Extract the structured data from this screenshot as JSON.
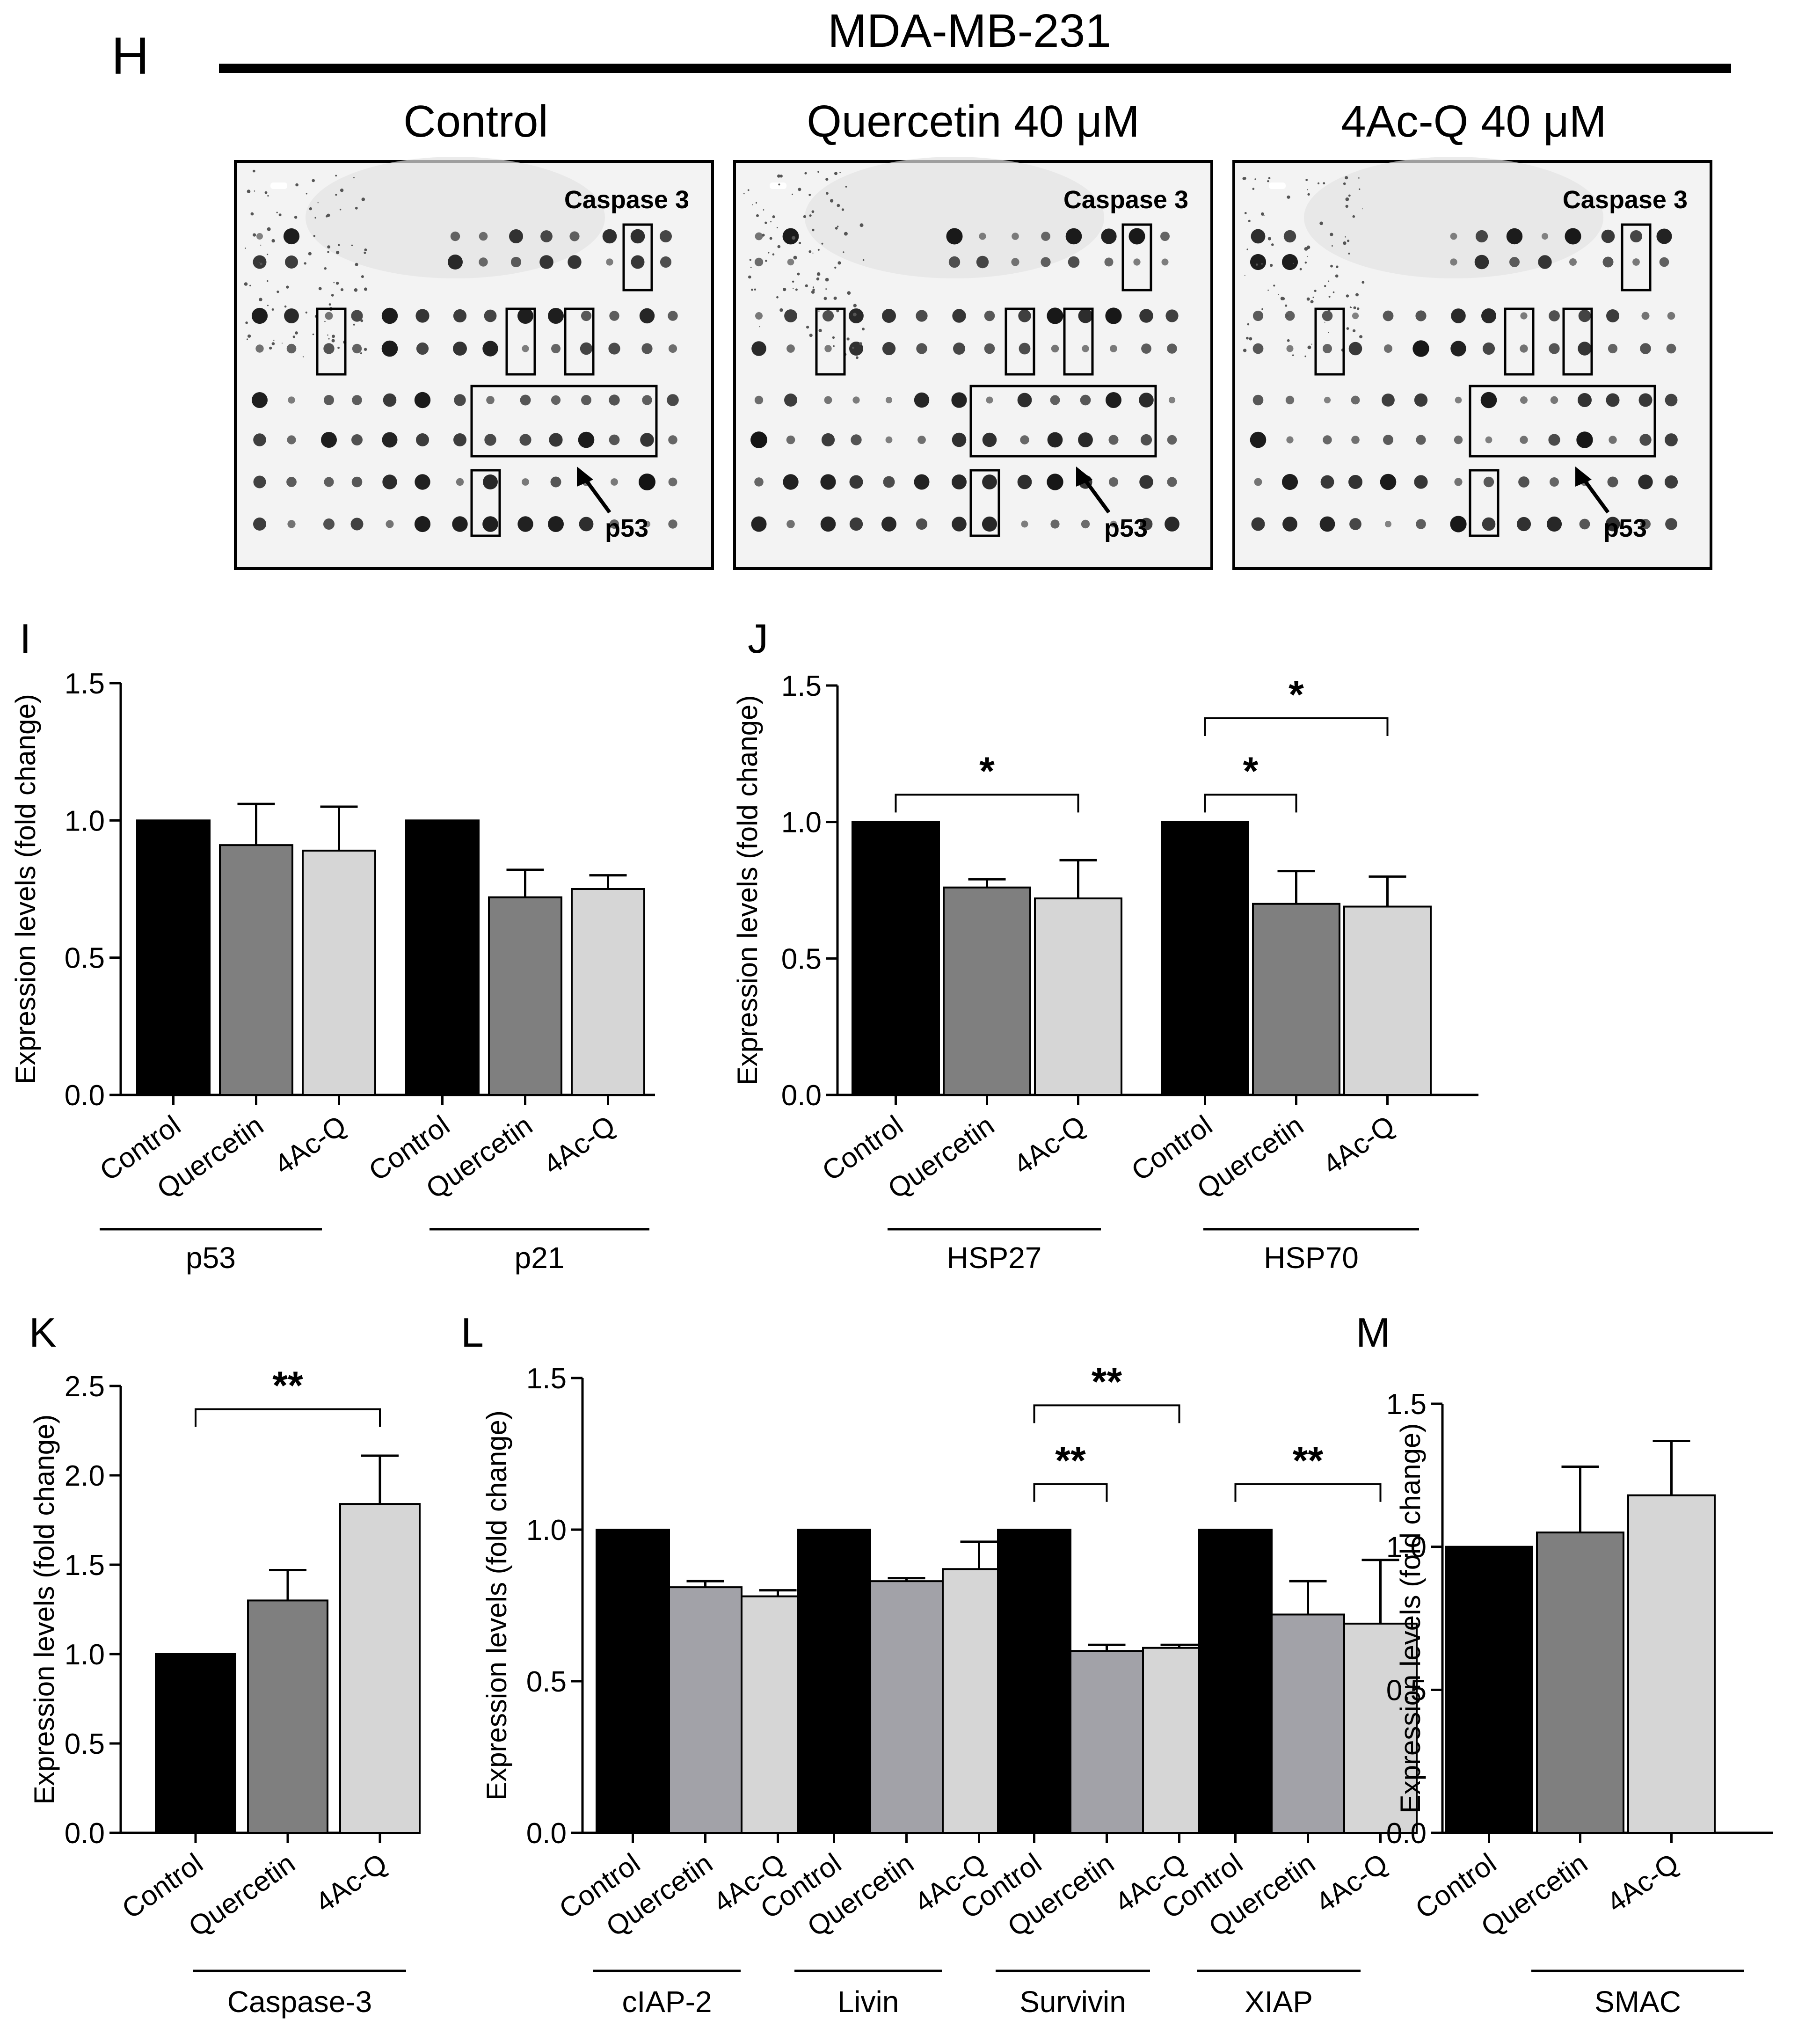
{
  "panel_h": {
    "label": "H",
    "cell_line": "MDA-MB-231",
    "blots": [
      {
        "title": "Control",
        "caspase_label": "Caspase 3",
        "p53_label": "p53"
      },
      {
        "title": "Quercetin 40 μM",
        "caspase_label": "Caspase 3",
        "p53_label": "p53"
      },
      {
        "title": "4Ac-Q 40 μM",
        "caspase_label": "Caspase 3",
        "p53_label": "p53"
      }
    ]
  },
  "colors": {
    "control": "#000000",
    "quercetin": "#7f7f7f",
    "acq": "#d6d6d6",
    "quercetin_light": "#a2a2a8"
  },
  "chart_data": [
    {
      "panel": "I",
      "type": "bar",
      "title": "",
      "ylabel": "Expression levels (fold change)",
      "xlabel": "",
      "ylim": [
        0,
        1.5
      ],
      "yticks": [
        "0.0",
        "0.5",
        "1.0",
        "1.5"
      ],
      "group_categories": [
        "Control",
        "Quercetin",
        "4Ac-Q"
      ],
      "groups": [
        {
          "name": "p53",
          "values": [
            1.0,
            0.91,
            0.89
          ],
          "errors": [
            0,
            0.15,
            0.16
          ]
        },
        {
          "name": "p21",
          "values": [
            1.0,
            0.72,
            0.75
          ],
          "errors": [
            0,
            0.1,
            0.05
          ]
        }
      ],
      "significance": []
    },
    {
      "panel": "J",
      "type": "bar",
      "title": "",
      "ylabel": "Expression levels (fold change)",
      "xlabel": "",
      "ylim": [
        0,
        1.5
      ],
      "yticks": [
        "0.0",
        "0.5",
        "1.0",
        "1.5"
      ],
      "group_categories": [
        "Control",
        "Quercetin",
        "4Ac-Q"
      ],
      "groups": [
        {
          "name": "HSP27",
          "values": [
            1.0,
            0.76,
            0.72
          ],
          "errors": [
            0,
            0.03,
            0.14
          ]
        },
        {
          "name": "HSP70",
          "values": [
            1.0,
            0.7,
            0.69
          ],
          "errors": [
            0,
            0.12,
            0.11
          ]
        }
      ],
      "significance": [
        {
          "group": 0,
          "from": 0,
          "to": 2,
          "label": "*",
          "level": 1.1
        },
        {
          "group": 1,
          "from": 0,
          "to": 1,
          "label": "*",
          "level": 1.1
        },
        {
          "group": 1,
          "from": 0,
          "to": 2,
          "label": "*",
          "level": 1.38
        }
      ]
    },
    {
      "panel": "K",
      "type": "bar",
      "title": "",
      "ylabel": "Expression levels  (fold change)",
      "xlabel": "",
      "ylim": [
        0,
        2.5
      ],
      "yticks": [
        "0.0",
        "0.5",
        "1.0",
        "1.5",
        "2.0",
        "2.5"
      ],
      "group_categories": [
        "Control",
        "Quercetin",
        "4Ac-Q"
      ],
      "groups": [
        {
          "name": "Caspase-3",
          "values": [
            1.0,
            1.3,
            1.84
          ],
          "errors": [
            0,
            0.17,
            0.27
          ]
        }
      ],
      "significance": [
        {
          "group": 0,
          "from": 0,
          "to": 2,
          "label": "**",
          "level": 2.37
        }
      ]
    },
    {
      "panel": "L",
      "type": "bar",
      "title": "",
      "ylabel": "Expression levels (fold change)",
      "xlabel": "",
      "ylim": [
        0,
        1.5
      ],
      "yticks": [
        "0.0",
        "0.5",
        "1.0",
        "1.5"
      ],
      "group_categories": [
        "Control",
        "Quercetin",
        "4Ac-Q"
      ],
      "groups": [
        {
          "name": "cIAP-2",
          "values": [
            1.0,
            0.81,
            0.78
          ],
          "errors": [
            0,
            0.02,
            0.02
          ]
        },
        {
          "name": "Livin",
          "values": [
            1.0,
            0.83,
            0.87
          ],
          "errors": [
            0,
            0.01,
            0.09
          ]
        },
        {
          "name": "Survivin",
          "values": [
            1.0,
            0.6,
            0.61
          ],
          "errors": [
            0,
            0.02,
            0.01
          ]
        },
        {
          "name": "XIAP",
          "values": [
            1.0,
            0.72,
            0.69
          ],
          "errors": [
            0,
            0.11,
            0.21
          ]
        }
      ],
      "significance": [
        {
          "group": 2,
          "from": 0,
          "to": 2,
          "label": "**",
          "level": 1.41
        },
        {
          "group": 2,
          "from": 0,
          "to": 1,
          "label": "**",
          "level": 1.15
        },
        {
          "group": 3,
          "from": 0,
          "to": 2,
          "label": "**",
          "level": 1.15
        }
      ]
    },
    {
      "panel": "M",
      "type": "bar",
      "title": "",
      "ylabel": "Expression levels  (fold change)",
      "xlabel": "",
      "ylim": [
        0,
        1.5
      ],
      "yticks": [
        "0.0",
        "0.5",
        "1.0",
        "1.5"
      ],
      "group_categories": [
        "Control",
        "Quercetin",
        "4Ac-Q"
      ],
      "groups": [
        {
          "name": "SMAC",
          "values": [
            1.0,
            1.05,
            1.18
          ],
          "errors": [
            0,
            0.23,
            0.19
          ]
        }
      ],
      "significance": []
    }
  ]
}
